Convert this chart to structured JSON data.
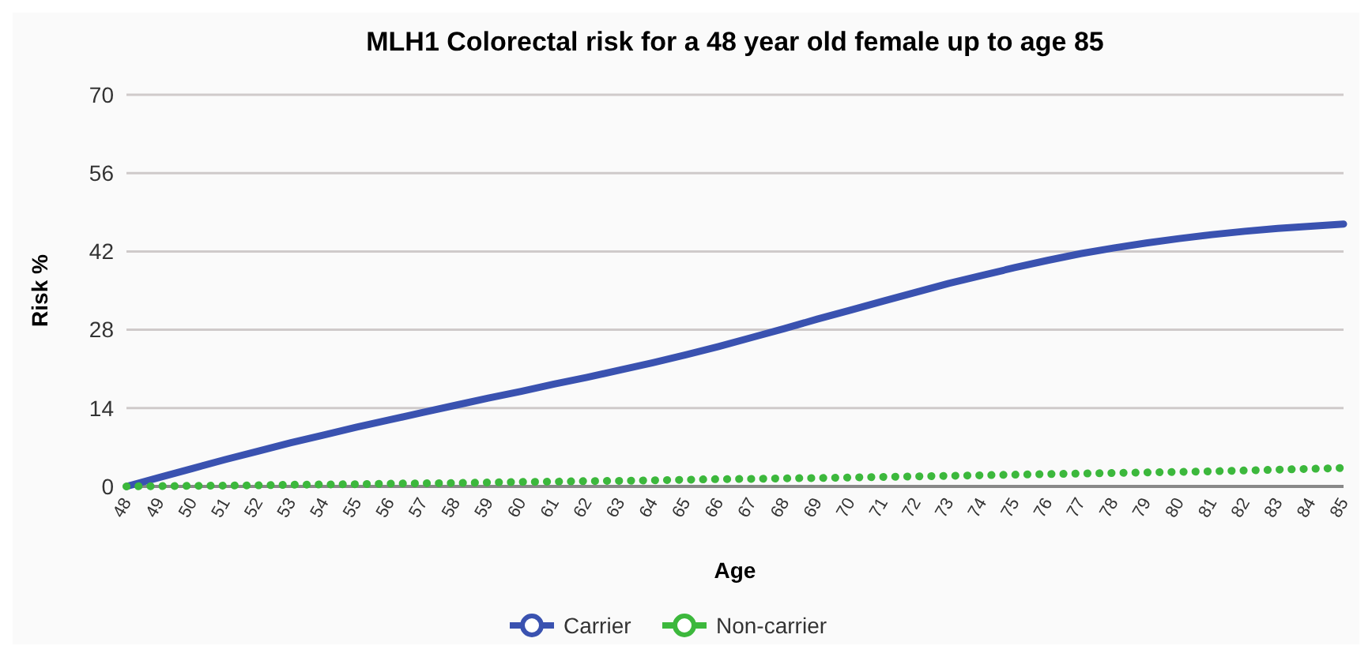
{
  "chart_data": {
    "type": "line",
    "title": "MLH1 Colorectal risk for a 48 year old female up to age 85",
    "xlabel": "Age",
    "ylabel": "Risk %",
    "categories": [
      "48",
      "49",
      "50",
      "51",
      "52",
      "53",
      "54",
      "55",
      "56",
      "57",
      "58",
      "59",
      "60",
      "61",
      "62",
      "63",
      "64",
      "65",
      "66",
      "67",
      "68",
      "69",
      "70",
      "71",
      "72",
      "73",
      "74",
      "75",
      "76",
      "77",
      "78",
      "79",
      "80",
      "81",
      "82",
      "83",
      "84",
      "85"
    ],
    "series": [
      {
        "name": "Carrier",
        "color": "#3a52b0",
        "line_style": "solid",
        "values": [
          0,
          1.6,
          3.2,
          4.8,
          6.3,
          7.8,
          9.2,
          10.6,
          11.9,
          13.2,
          14.5,
          15.8,
          17.0,
          18.3,
          19.5,
          20.8,
          22.1,
          23.5,
          25.0,
          26.6,
          28.2,
          29.9,
          31.5,
          33.1,
          34.7,
          36.3,
          37.7,
          39.1,
          40.4,
          41.6,
          42.6,
          43.5,
          44.3,
          45.0,
          45.6,
          46.1,
          46.5,
          46.9
        ]
      },
      {
        "name": "Non-carrier",
        "color": "#3cb83c",
        "line_style": "dotted",
        "values": [
          0,
          0.05,
          0.1,
          0.15,
          0.2,
          0.3,
          0.35,
          0.4,
          0.5,
          0.55,
          0.6,
          0.7,
          0.8,
          0.85,
          0.95,
          1.0,
          1.1,
          1.2,
          1.3,
          1.35,
          1.45,
          1.5,
          1.6,
          1.7,
          1.8,
          1.9,
          2.0,
          2.1,
          2.2,
          2.3,
          2.4,
          2.5,
          2.6,
          2.7,
          2.85,
          3.0,
          3.15,
          3.3
        ]
      }
    ],
    "ylim": [
      0,
      70
    ],
    "yticks": [
      0,
      14,
      28,
      42,
      56,
      70
    ],
    "grid": "y",
    "legend": "bottom",
    "marker": "none"
  }
}
